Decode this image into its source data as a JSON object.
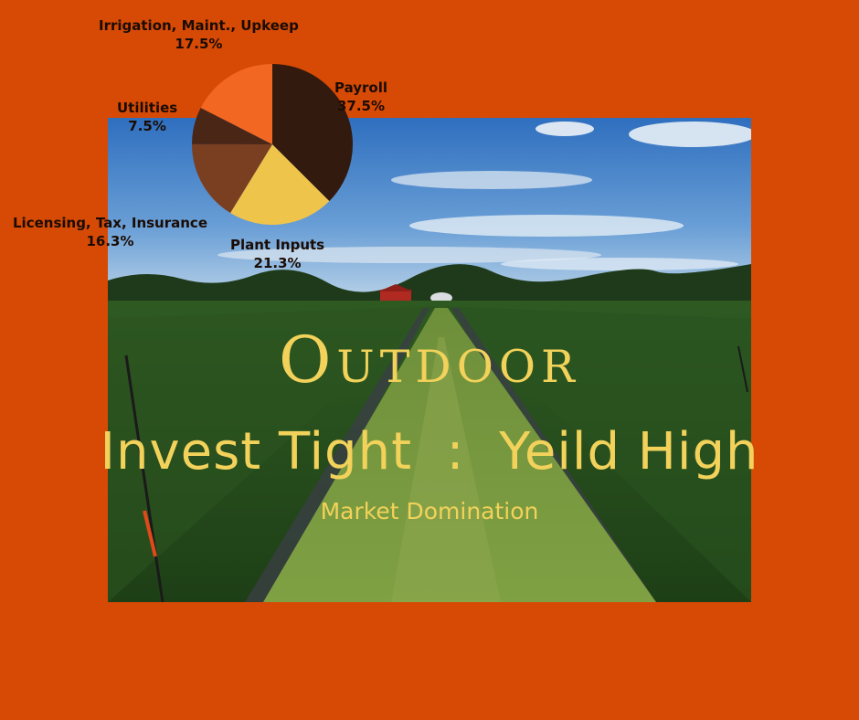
{
  "headline": {
    "title": "Outdoor",
    "tagline": "Invest Tight  :  Yeild High",
    "subtitle": "Market Domination"
  },
  "colors": {
    "background": "#D64A05",
    "headline_text": "#F2D25A"
  },
  "chart_data": {
    "type": "pie",
    "slices": [
      {
        "label": "Payroll",
        "value": 37.5,
        "value_label": "37.5%",
        "color": "#331A0E"
      },
      {
        "label": "Plant Inputs",
        "value": 21.3,
        "value_label": "21.3%",
        "color": "#EFC44A"
      },
      {
        "label": "Licensing, Tax, Insurance",
        "value": 16.3,
        "value_label": "16.3%",
        "color": "#7A3F20"
      },
      {
        "label": "Utilities",
        "value": 7.5,
        "value_label": "7.5%",
        "color": "#4A2616"
      },
      {
        "label": "Irrigation, Maint., Upkeep",
        "value": 17.5,
        "value_label": "17.5%",
        "color": "#F26722"
      }
    ]
  }
}
